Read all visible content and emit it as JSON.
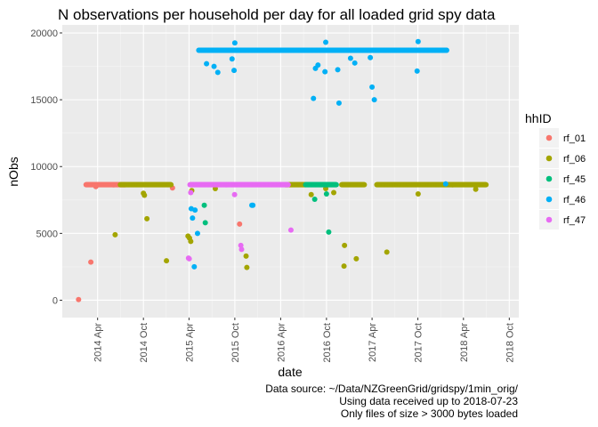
{
  "chart_data": {
    "type": "scatter",
    "title": "N observations per household per day for all loaded grid spy data",
    "xlabel": "date",
    "ylabel": "nObs",
    "x_type": "date",
    "xlim": [
      "2013-11-11",
      "2018-11-08"
    ],
    "ylim": [
      -1300,
      20600
    ],
    "x_ticks": [
      {
        "label": "2014 Apr",
        "date": "2014-04-01"
      },
      {
        "label": "2014 Oct",
        "date": "2014-10-01"
      },
      {
        "label": "2015 Apr",
        "date": "2015-04-01"
      },
      {
        "label": "2015 Oct",
        "date": "2015-10-01"
      },
      {
        "label": "2016 Apr",
        "date": "2016-04-01"
      },
      {
        "label": "2016 Oct",
        "date": "2016-10-01"
      },
      {
        "label": "2017 Apr",
        "date": "2017-04-01"
      },
      {
        "label": "2017 Oct",
        "date": "2017-10-01"
      },
      {
        "label": "2018 Apr",
        "date": "2018-04-01"
      },
      {
        "label": "2018 Oct",
        "date": "2018-10-01"
      }
    ],
    "y_ticks": [
      0,
      5000,
      10000,
      15000,
      20000
    ],
    "grid": true,
    "legend": {
      "title": "hhID",
      "position": "right"
    },
    "series": [
      {
        "name": "rf_01",
        "color": "#F8766D",
        "bands": [
          {
            "start": "2014-02-14",
            "end": "2014-07-20",
            "step": 2,
            "value": 8640
          }
        ],
        "points": [
          {
            "x": "2014-01-15",
            "y": 50
          },
          {
            "x": "2014-03-05",
            "y": 2850
          },
          {
            "x": "2014-03-25",
            "y": 8500
          },
          {
            "x": "2015-01-25",
            "y": 8400
          },
          {
            "x": "2015-10-20",
            "y": 5700
          }
        ]
      },
      {
        "name": "rf_06",
        "color": "#A3A500",
        "bands": [
          {
            "start": "2014-07-01",
            "end": "2015-01-20",
            "step": 2,
            "value": 8640
          },
          {
            "start": "2016-04-20",
            "end": "2016-07-10",
            "step": 2,
            "value": 8640
          },
          {
            "start": "2016-12-01",
            "end": "2017-03-01",
            "step": 2,
            "value": 8640
          },
          {
            "start": "2017-04-20",
            "end": "2018-06-30",
            "step": 2,
            "value": 8640
          }
        ],
        "points": [
          {
            "x": "2014-06-10",
            "y": 4900
          },
          {
            "x": "2014-10-01",
            "y": 8000
          },
          {
            "x": "2014-10-05",
            "y": 7850
          },
          {
            "x": "2014-10-15",
            "y": 6100
          },
          {
            "x": "2015-01-01",
            "y": 2950
          },
          {
            "x": "2015-03-28",
            "y": 4800
          },
          {
            "x": "2015-04-03",
            "y": 4650
          },
          {
            "x": "2015-04-08",
            "y": 4400
          },
          {
            "x": "2015-04-12",
            "y": 8200
          },
          {
            "x": "2015-07-15",
            "y": 8350
          },
          {
            "x": "2015-11-15",
            "y": 3300
          },
          {
            "x": "2015-11-18",
            "y": 2450
          },
          {
            "x": "2016-08-01",
            "y": 7900
          },
          {
            "x": "2016-09-28",
            "y": 8350
          },
          {
            "x": "2016-10-30",
            "y": 8050
          },
          {
            "x": "2016-12-10",
            "y": 2550
          },
          {
            "x": "2016-12-12",
            "y": 4100
          },
          {
            "x": "2017-01-28",
            "y": 3100
          },
          {
            "x": "2017-05-30",
            "y": 3600
          },
          {
            "x": "2017-10-02",
            "y": 7950
          },
          {
            "x": "2018-05-20",
            "y": 8300
          }
        ]
      },
      {
        "name": "rf_45",
        "color": "#00BF7D",
        "bands": [
          {
            "start": "2016-07-10",
            "end": "2016-11-10",
            "step": 2,
            "value": 8640
          }
        ],
        "points": [
          {
            "x": "2015-06-01",
            "y": 7100
          },
          {
            "x": "2015-06-05",
            "y": 5800
          },
          {
            "x": "2016-08-15",
            "y": 7550
          },
          {
            "x": "2016-10-10",
            "y": 5100
          },
          {
            "x": "2016-10-01",
            "y": 7950
          }
        ]
      },
      {
        "name": "rf_46",
        "color": "#00B0F6",
        "bands": [
          {
            "start": "2015-05-10",
            "end": "2018-01-25",
            "step": 2,
            "value": 18700
          }
        ],
        "points": [
          {
            "x": "2015-04-10",
            "y": 6850
          },
          {
            "x": "2015-04-15",
            "y": 6150
          },
          {
            "x": "2015-04-22",
            "y": 2500
          },
          {
            "x": "2015-04-25",
            "y": 6750
          },
          {
            "x": "2015-05-05",
            "y": 5000
          },
          {
            "x": "2015-06-10",
            "y": 17700
          },
          {
            "x": "2015-07-10",
            "y": 17500
          },
          {
            "x": "2015-07-25",
            "y": 17050
          },
          {
            "x": "2015-09-20",
            "y": 18050
          },
          {
            "x": "2015-09-28",
            "y": 17200
          },
          {
            "x": "2015-10-01",
            "y": 19250
          },
          {
            "x": "2015-12-08",
            "y": 7100
          },
          {
            "x": "2015-12-12",
            "y": 7100
          },
          {
            "x": "2016-08-10",
            "y": 15100
          },
          {
            "x": "2016-08-18",
            "y": 17350
          },
          {
            "x": "2016-08-28",
            "y": 17600
          },
          {
            "x": "2016-09-25",
            "y": 17100
          },
          {
            "x": "2016-09-28",
            "y": 19300
          },
          {
            "x": "2016-11-15",
            "y": 17250
          },
          {
            "x": "2016-11-20",
            "y": 14750
          },
          {
            "x": "2017-01-05",
            "y": 18100
          },
          {
            "x": "2017-01-22",
            "y": 17750
          },
          {
            "x": "2017-03-25",
            "y": 18150
          },
          {
            "x": "2017-04-01",
            "y": 15950
          },
          {
            "x": "2017-04-10",
            "y": 15000
          },
          {
            "x": "2017-09-28",
            "y": 17150
          },
          {
            "x": "2017-10-02",
            "y": 19350
          },
          {
            "x": "2018-01-20",
            "y": 8700
          }
        ]
      },
      {
        "name": "rf_47",
        "color": "#E76BF3",
        "bands": [
          {
            "start": "2015-04-05",
            "end": "2016-05-01",
            "step": 2,
            "value": 8640
          }
        ],
        "points": [
          {
            "x": "2015-03-30",
            "y": 3150
          },
          {
            "x": "2015-04-02",
            "y": 3100
          },
          {
            "x": "2015-04-08",
            "y": 8050
          },
          {
            "x": "2015-09-30",
            "y": 7900
          },
          {
            "x": "2015-10-25",
            "y": 4100
          },
          {
            "x": "2015-10-28",
            "y": 3800
          },
          {
            "x": "2016-05-12",
            "y": 5250
          }
        ]
      }
    ],
    "caption": [
      "Data source: ~/Data/NZGreenGrid/gridspy/1min_orig/",
      "Using data received up to 2018-07-23",
      "Only files of size > 3000 bytes loaded"
    ]
  }
}
